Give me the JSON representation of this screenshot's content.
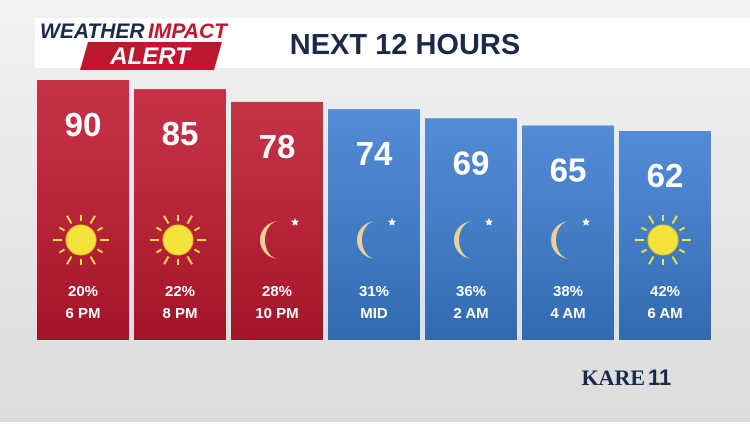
{
  "chart_data": {
    "type": "bar",
    "logo": {
      "word1": "WEATHER",
      "word2": "IMPACT",
      "word3": "ALERT"
    },
    "title": "NEXT 12 HOURS",
    "categories": [
      "6 PM",
      "8 PM",
      "10 PM",
      "MID",
      "2 AM",
      "4 AM",
      "6 AM"
    ],
    "values": [
      90,
      85,
      78,
      74,
      69,
      65,
      62
    ],
    "precipitation": [
      "20%",
      "22%",
      "28%",
      "31%",
      "36%",
      "38%",
      "42%"
    ],
    "icons": [
      "sun",
      "sun",
      "moon",
      "moon",
      "moon",
      "moon",
      "sun"
    ],
    "colors": [
      "#c0162f",
      "#c0162f",
      "#c0162f",
      "#3a7ccf",
      "#3a7ccf",
      "#3a7ccf",
      "#3a7ccf"
    ],
    "brand": {
      "name": "KARE",
      "number": "11"
    }
  }
}
